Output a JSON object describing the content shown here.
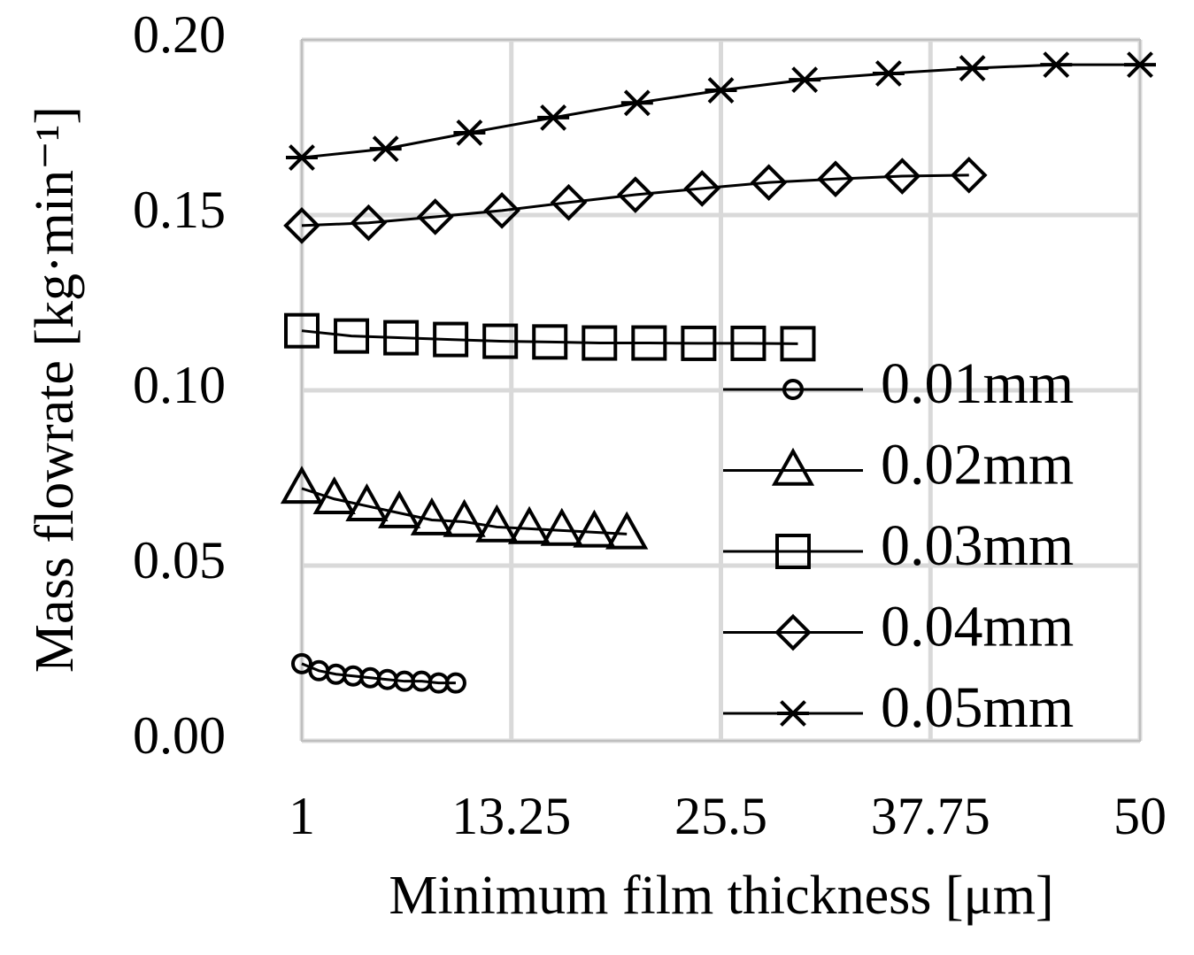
{
  "chart_data": {
    "type": "line",
    "xlabel": "Minimum film thickness [μm]",
    "ylabel": "Mass flowrate [kg·min⁻¹]",
    "xlim": [
      1,
      50
    ],
    "xticks": [
      1,
      13.25,
      25.5,
      37.75,
      50
    ],
    "ylim": [
      0,
      0.2
    ],
    "yticks": [
      {
        "value": 0,
        "label": "0.00"
      },
      {
        "value": 0.05,
        "label": "0.05"
      },
      {
        "value": 0.1,
        "label": "0.10"
      },
      {
        "value": 0.15,
        "label": "0.15"
      },
      {
        "value": 0.2,
        "label": "0.20"
      }
    ],
    "grid": true,
    "legend": "lower right",
    "series": [
      {
        "name": "0.01mm",
        "color": "#000000",
        "marker": "circle",
        "x": [
          1,
          2,
          3,
          4,
          5,
          6,
          7,
          8,
          9,
          10
        ],
        "values": [
          0.022,
          0.02,
          0.019,
          0.0185,
          0.018,
          0.0175,
          0.017,
          0.017,
          0.0165,
          0.0165
        ]
      },
      {
        "name": "0.02mm",
        "color": "#000000",
        "marker": "triangle",
        "x": [
          1,
          2.9,
          4.8,
          6.7,
          8.6,
          10.5,
          12.4,
          14.3,
          16.2,
          18.1,
          20
        ],
        "values": [
          0.072,
          0.069,
          0.067,
          0.065,
          0.063,
          0.0625,
          0.061,
          0.0605,
          0.06,
          0.0595,
          0.059
        ]
      },
      {
        "name": "0.03mm",
        "color": "#000000",
        "marker": "square",
        "x": [
          1,
          3.9,
          6.8,
          9.7,
          12.6,
          15.5,
          18.4,
          21.3,
          24.2,
          27.1,
          30
        ],
        "values": [
          0.117,
          0.1155,
          0.115,
          0.1145,
          0.114,
          0.1138,
          0.1135,
          0.1135,
          0.1134,
          0.1134,
          0.1133
        ]
      },
      {
        "name": "0.04mm",
        "color": "#000000",
        "marker": "diamond",
        "x": [
          1,
          4.9,
          8.8,
          12.7,
          16.6,
          20.5,
          24.4,
          28.3,
          32.2,
          36.1,
          40
        ],
        "values": [
          0.147,
          0.1478,
          0.1495,
          0.1513,
          0.1536,
          0.1558,
          0.1576,
          0.1593,
          0.1603,
          0.1611,
          0.1614
        ]
      },
      {
        "name": "0.05mm",
        "color": "#000000",
        "marker": "star",
        "x": [
          1,
          5.9,
          10.8,
          15.7,
          20.6,
          25.5,
          30.4,
          35.3,
          40.2,
          45.1,
          50
        ],
        "values": [
          0.1664,
          0.1689,
          0.1735,
          0.1778,
          0.182,
          0.1856,
          0.1886,
          0.1904,
          0.1919,
          0.1929,
          0.1929
        ]
      }
    ]
  }
}
